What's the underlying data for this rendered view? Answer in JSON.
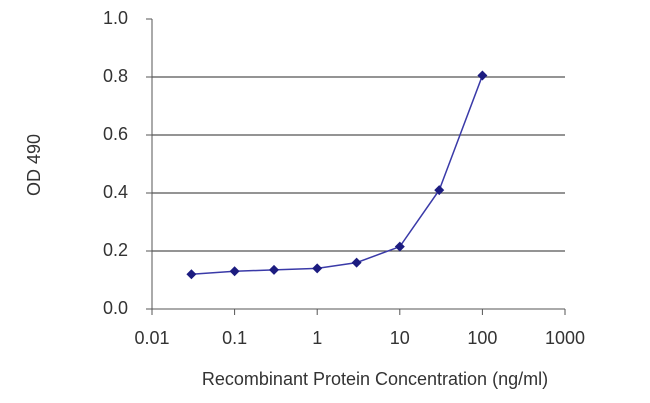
{
  "chart_data": {
    "type": "line",
    "x": [
      0.03,
      0.1,
      0.3,
      1,
      3,
      10,
      30,
      100
    ],
    "series": [
      {
        "color": "#3a3aa8",
        "values": [
          0.12,
          0.13,
          0.135,
          0.14,
          0.16,
          0.215,
          0.41,
          0.805
        ]
      }
    ],
    "x_label": "Recombinant Protein Concentration (ng/ml)",
    "y_label": "OD 490",
    "xscale": "log",
    "xlim": [
      0.01,
      1000
    ],
    "xticks": [
      0.01,
      0.1,
      1,
      10,
      100,
      1000
    ],
    "ylim": [
      0,
      1
    ],
    "yticks": [
      {
        "value": 0,
        "label": "0.0"
      },
      0.2,
      0.4,
      0.6,
      0.8,
      {
        "value": 1,
        "label": "1.0"
      }
    ],
    "grid": true,
    "marker_color": "#1c1c80"
  }
}
